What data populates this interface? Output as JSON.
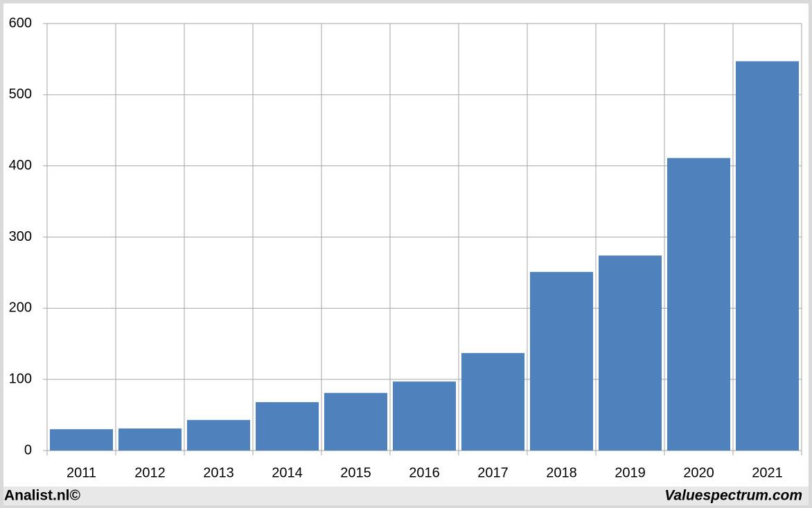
{
  "chart_data": {
    "type": "bar",
    "categories": [
      "2011",
      "2012",
      "2013",
      "2014",
      "2015",
      "2016",
      "2017",
      "2018",
      "2019",
      "2020",
      "2021"
    ],
    "values": [
      30,
      31,
      43,
      68,
      81,
      97,
      137,
      251,
      274,
      411,
      547
    ],
    "color": "#4f81bd",
    "ylim": [
      0,
      600
    ],
    "yticks": [
      0,
      100,
      200,
      300,
      400,
      500,
      600
    ],
    "grid": true,
    "credits": [
      "Analist.nl©",
      "Valuespectrum.com"
    ]
  }
}
